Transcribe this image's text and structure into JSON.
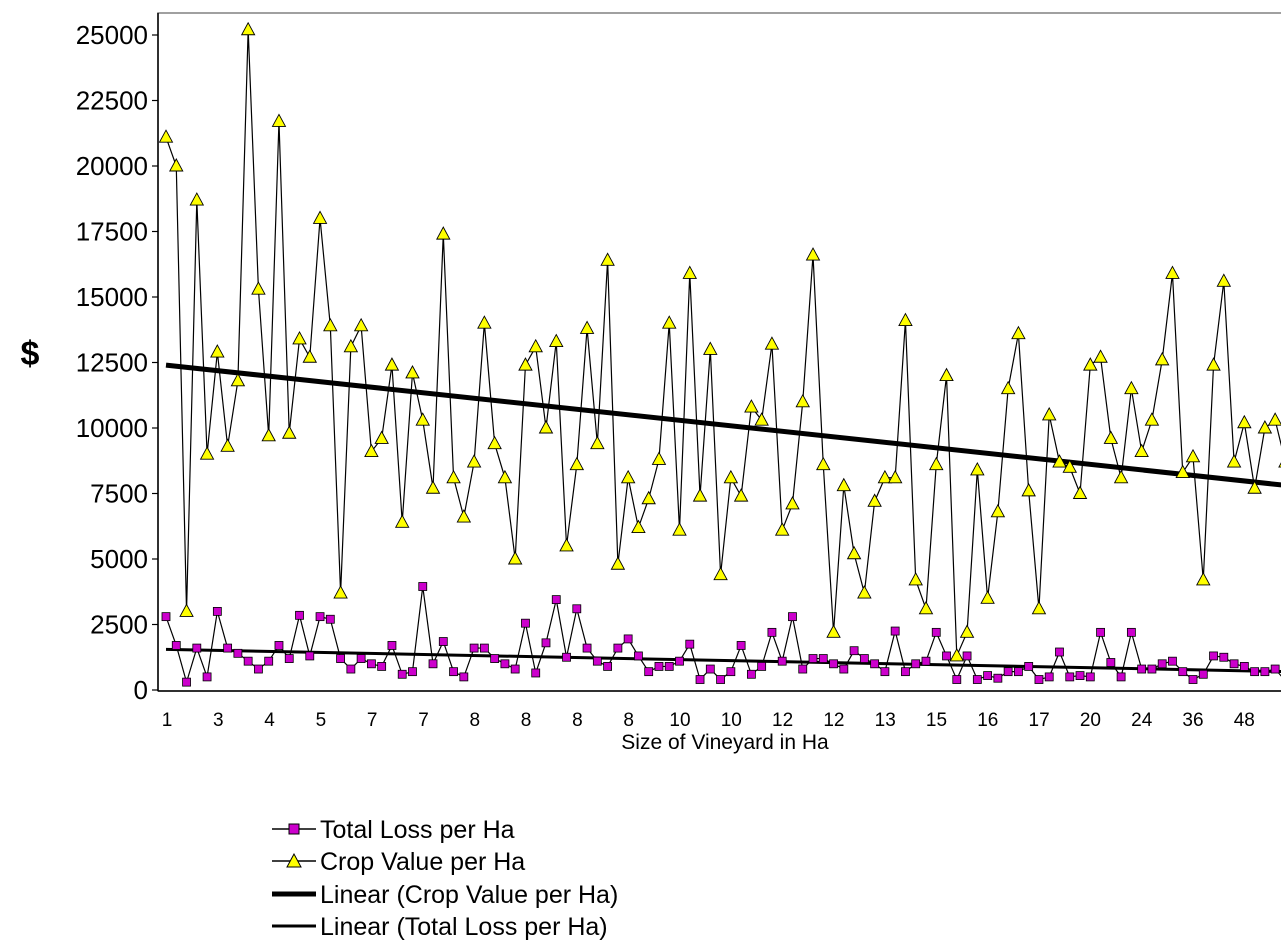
{
  "chart_data": {
    "type": "line",
    "title": "",
    "xlabel": "Size of Vineyard in Ha",
    "ylabel": "$",
    "ylim": [
      0,
      25000
    ],
    "yticks": [
      0,
      2500,
      5000,
      7500,
      10000,
      12500,
      15000,
      17500,
      20000,
      22500,
      25000
    ],
    "xtick_labels": [
      "1",
      "3",
      "4",
      "5",
      "7",
      "7",
      "8",
      "8",
      "8",
      "8",
      "10",
      "10",
      "12",
      "12",
      "13",
      "15",
      "16",
      "17",
      "20",
      "24",
      "36",
      "48"
    ],
    "legend_position": "bottom",
    "series": [
      {
        "name": "Total Loss per Ha",
        "marker": "square",
        "color": "#cc00cc",
        "line_color": "#000000",
        "values": [
          2800,
          1700,
          300,
          1600,
          500,
          3000,
          1600,
          1400,
          1100,
          800,
          1100,
          1700,
          1200,
          2850,
          1300,
          2800,
          2700,
          1200,
          800,
          1200,
          1000,
          900,
          1700,
          600,
          700,
          3950,
          1000,
          1850,
          700,
          500,
          1600,
          1600,
          1200,
          1000,
          800,
          2550,
          650,
          1800,
          3450,
          1250,
          3100,
          1600,
          1100,
          900,
          1600,
          1950,
          1300,
          700,
          900,
          900,
          1100,
          1750,
          400,
          800,
          400,
          700,
          1700,
          600,
          900,
          2200,
          1100,
          2800,
          800,
          1200,
          1200,
          1000,
          800,
          1500,
          1200,
          1000,
          700,
          2250,
          700,
          1000,
          1100,
          2200,
          1300,
          400,
          1300,
          400,
          550,
          450,
          700,
          700,
          900,
          400,
          500,
          1450,
          500,
          550,
          500,
          2200,
          1050,
          500,
          2200,
          800,
          800,
          1000,
          1100,
          700,
          400,
          600,
          1300,
          1250,
          1000,
          900,
          700,
          700,
          800,
          350
        ]
      },
      {
        "name": "Crop Value per Ha",
        "marker": "triangle",
        "color": "#ffff00",
        "line_color": "#000000",
        "values": [
          21100,
          20000,
          3000,
          18700,
          9000,
          12900,
          9300,
          11800,
          25200,
          15300,
          9700,
          21700,
          9800,
          13400,
          12700,
          18000,
          13900,
          3700,
          13100,
          13900,
          9100,
          9600,
          12400,
          6400,
          12100,
          10300,
          7700,
          17400,
          8100,
          6600,
          8700,
          14000,
          9400,
          8100,
          5000,
          12400,
          13100,
          10000,
          13300,
          5500,
          8600,
          13800,
          9400,
          16400,
          4800,
          8100,
          6200,
          7300,
          8800,
          14000,
          6100,
          15900,
          7400,
          13000,
          4400,
          8100,
          7400,
          10800,
          10300,
          13200,
          6100,
          7100,
          11000,
          16600,
          8600,
          2200,
          7800,
          5200,
          3700,
          7200,
          8100,
          8100,
          14100,
          4200,
          3100,
          8600,
          12000,
          1300,
          2200,
          8400,
          3500,
          6800,
          11500,
          13600,
          7600,
          3100,
          10500,
          8700,
          8500,
          7500,
          12400,
          12700,
          9600,
          8100,
          11500,
          9100,
          10300,
          12600,
          15900,
          8300,
          8900,
          4200,
          12400,
          15600,
          8700,
          10200,
          7700,
          10000,
          10300,
          8700
        ]
      },
      {
        "name": "Linear (Crop Value per Ha)",
        "style": "trendline-thick",
        "start_value": 12400,
        "end_value": 7800
      },
      {
        "name": "Linear (Total Loss per Ha)",
        "style": "trendline-thin",
        "start_value": 1550,
        "end_value": 700
      }
    ]
  },
  "legend": {
    "items": [
      {
        "label": "Total Loss per Ha"
      },
      {
        "label": "Crop Value per Ha"
      },
      {
        "label": "Linear (Crop Value per Ha)"
      },
      {
        "label": "Linear (Total Loss per Ha)"
      }
    ]
  }
}
